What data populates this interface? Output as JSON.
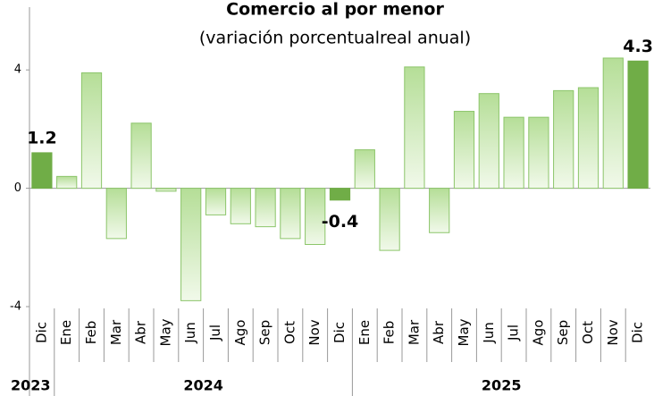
{
  "chart_data": {
    "type": "bar",
    "title": "Comercio al por menor",
    "subtitle": "(variación porcentualreal anual)",
    "categories": [
      "Dic",
      "Ene",
      "Feb",
      "Mar",
      "Abr",
      "May",
      "Jun",
      "Jul",
      "Ago",
      "Sep",
      "Oct",
      "Nov",
      "Dic",
      "Ene",
      "Feb",
      "Mar",
      "Abr",
      "May",
      "Jun",
      "Jul",
      "Ago",
      "Sep",
      "Oct",
      "Nov",
      "Dic"
    ],
    "years": [
      "2023",
      "2024",
      "2024",
      "2024",
      "2024",
      "2024",
      "2024",
      "2024",
      "2024",
      "2024",
      "2024",
      "2024",
      "2024",
      "2025",
      "2025",
      "2025",
      "2025",
      "2025",
      "2025",
      "2025",
      "2025",
      "2025",
      "2025",
      "2025",
      "2025"
    ],
    "values": [
      1.2,
      0.4,
      3.9,
      -1.7,
      2.2,
      -0.1,
      -3.8,
      -0.9,
      -1.2,
      -1.3,
      -1.7,
      -1.9,
      -0.4,
      1.3,
      -2.1,
      4.1,
      -1.5,
      2.6,
      3.2,
      2.4,
      2.4,
      3.3,
      3.4,
      4.4,
      4.3
    ],
    "value_labels": [
      "1.2",
      null,
      null,
      null,
      null,
      null,
      null,
      null,
      null,
      null,
      null,
      null,
      "-0.4",
      null,
      null,
      null,
      null,
      null,
      null,
      null,
      null,
      null,
      null,
      null,
      "4.3"
    ],
    "color": "#b5de97",
    "highlight_color": "#70ad47",
    "ylim": [
      -4,
      6
    ],
    "yticks": [
      -4,
      0,
      4
    ]
  }
}
